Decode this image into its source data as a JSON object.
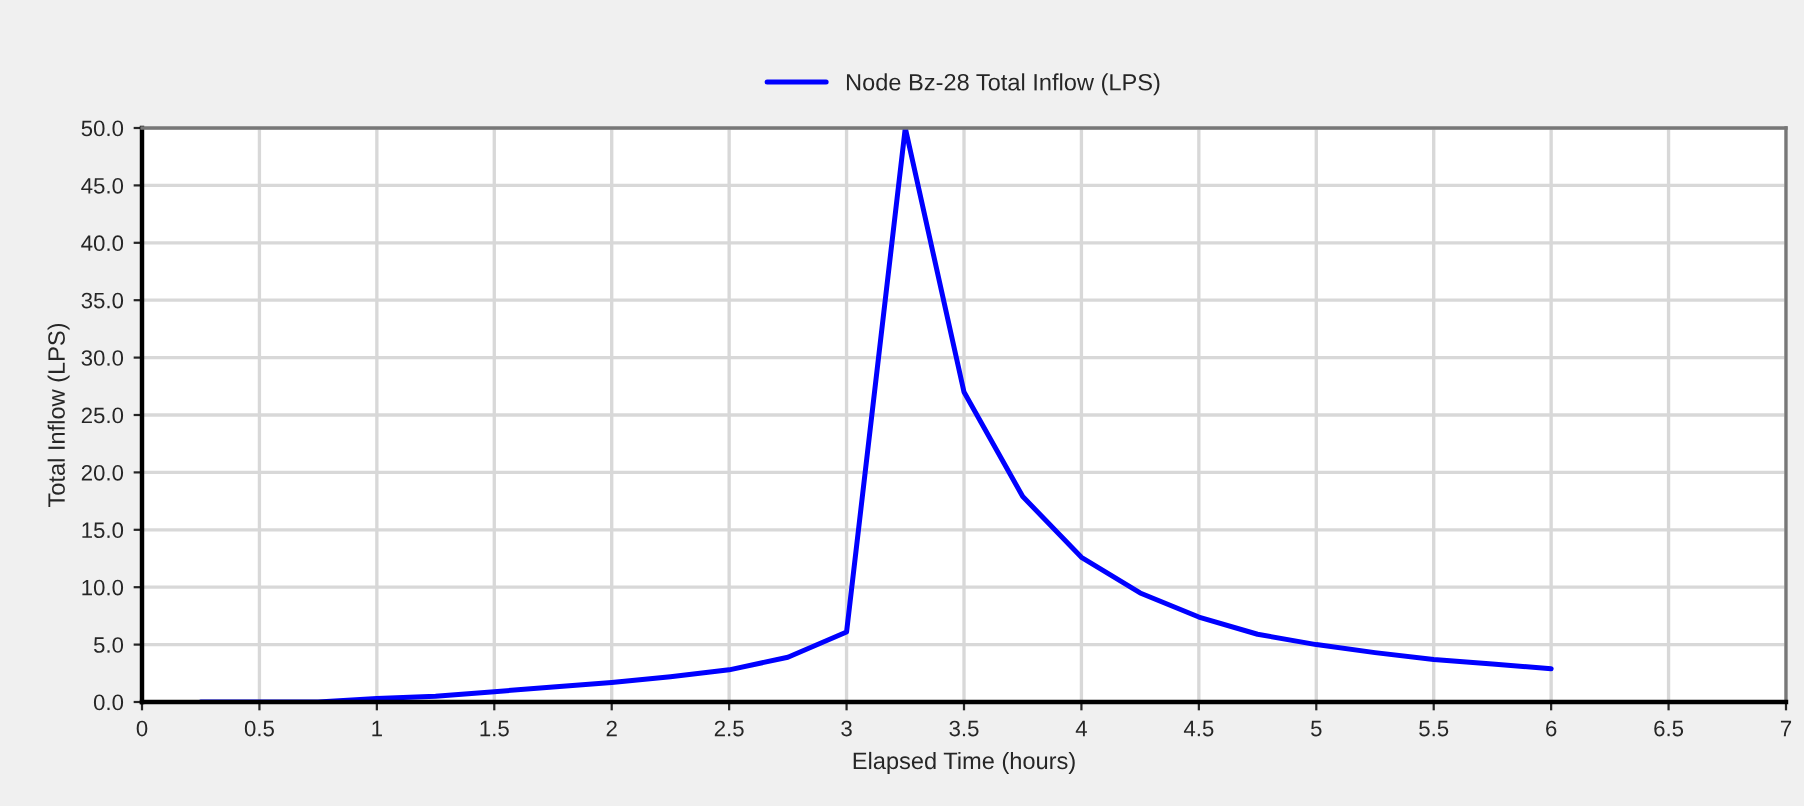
{
  "chart_data": {
    "type": "line",
    "xlabel": "Elapsed Time (hours)",
    "ylabel": "Total Inflow (LPS)",
    "x": [
      0.25,
      0.5,
      0.75,
      1,
      1.25,
      1.5,
      1.75,
      2,
      2.25,
      2.5,
      2.75,
      3,
      3.25,
      3.5,
      3.75,
      4,
      4.25,
      4.5,
      4.75,
      5,
      5.25,
      5.5,
      5.75,
      6
    ],
    "series": [
      {
        "name": "Node Bz-28 Total Inflow (LPS)",
        "color": "#0000ff",
        "values": [
          0,
          0,
          0,
          0.3,
          0.5,
          0.9,
          1.3,
          1.7,
          2.2,
          2.8,
          3.9,
          6.1,
          50,
          27,
          17.9,
          12.6,
          9.5,
          7.4,
          5.9,
          5.0,
          4.3,
          3.7,
          3.3,
          2.9
        ]
      }
    ],
    "xlim": [
      0,
      7
    ],
    "xticks": [
      0,
      0.5,
      1,
      1.5,
      2,
      2.5,
      3,
      3.5,
      4,
      4.5,
      5,
      5.5,
      6,
      6.5,
      7
    ],
    "ylim": [
      0,
      50
    ],
    "yticks": [
      {
        "value": 0,
        "label": "0.0"
      },
      {
        "value": 5,
        "label": "5.0"
      },
      {
        "value": 10,
        "label": "10.0"
      },
      {
        "value": 15,
        "label": "15.0"
      },
      {
        "value": 20,
        "label": "20.0"
      },
      {
        "value": 25,
        "label": "25.0"
      },
      {
        "value": 30,
        "label": "30.0"
      },
      {
        "value": 35,
        "label": "35.0"
      },
      {
        "value": 40,
        "label": "40.0"
      },
      {
        "value": 45,
        "label": "45.0"
      },
      {
        "value": 50,
        "label": "50.0"
      }
    ],
    "grid": true,
    "legend": "top",
    "marker": "none",
    "line_style": "solid"
  }
}
